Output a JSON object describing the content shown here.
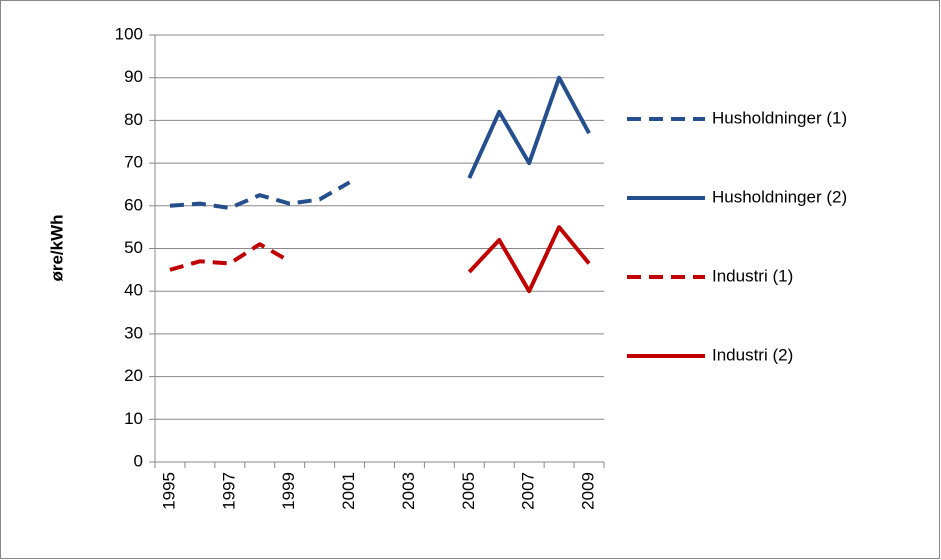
{
  "chart_data": {
    "type": "line",
    "y_label": "øre/kWh",
    "categories": [
      "1995",
      null,
      "1997",
      null,
      "1999",
      null,
      "2001",
      null,
      "2003",
      null,
      "2005",
      null,
      "2007",
      null,
      "2009"
    ],
    "series": [
      {
        "name": "Husholdninger (1)",
        "color": "#254f8c",
        "style": "dashed",
        "values": [
          60,
          60.5,
          59.5,
          62.5,
          60.5,
          61.5,
          65.5,
          null,
          null,
          null,
          null,
          null,
          null,
          null,
          null
        ]
      },
      {
        "name": "Husholdninger (2)",
        "color": "#254f8c",
        "style": "solid",
        "values": [
          null,
          null,
          null,
          null,
          null,
          null,
          null,
          null,
          null,
          null,
          66.5,
          82,
          70,
          90,
          77
        ]
      },
      {
        "name": "Industri (1)",
        "color": "#c00000",
        "style": "dashed",
        "values": [
          45,
          47,
          46.5,
          51,
          47,
          null,
          null,
          null,
          null,
          null,
          null,
          null,
          null,
          null,
          null
        ]
      },
      {
        "name": "Industri (2)",
        "color": "#c00000",
        "style": "solid",
        "values": [
          null,
          null,
          null,
          null,
          null,
          null,
          null,
          null,
          null,
          null,
          44.5,
          52,
          40,
          55,
          46.5
        ]
      }
    ],
    "ylim": [
      0,
      100
    ],
    "yticks": [
      0,
      10,
      20,
      30,
      40,
      50,
      60,
      70,
      80,
      90,
      100
    ],
    "grid": true,
    "legend": "right"
  }
}
